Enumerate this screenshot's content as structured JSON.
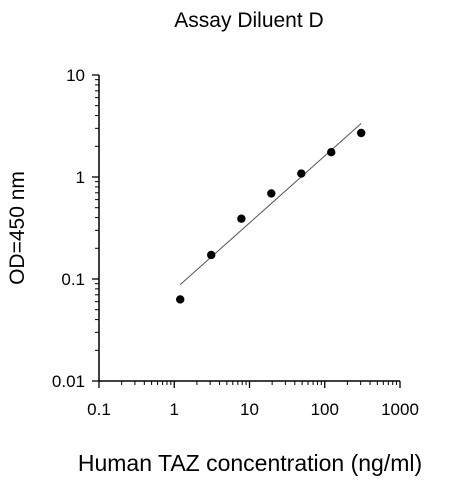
{
  "chart_data": {
    "type": "scatter",
    "title": "Assay Diluent D",
    "xlabel": "Human TAZ concentration (ng/ml)",
    "ylabel": "OD=450 nm",
    "x_scale": "log",
    "y_scale": "log",
    "xlim": [
      0.1,
      1000
    ],
    "ylim": [
      0.01,
      10
    ],
    "xticks": [
      "0.1",
      "1",
      "10",
      "100",
      "1000"
    ],
    "yticks": [
      "0.01",
      "0.1",
      "1",
      "10"
    ],
    "grid": false,
    "legend": "none",
    "series": [
      {
        "x": [
          1.2,
          3.1,
          7.8,
          19.5,
          48.8,
          122,
          305
        ],
        "y": [
          0.063,
          0.172,
          0.39,
          0.69,
          1.08,
          1.75,
          2.7
        ]
      }
    ],
    "fit_line": {
      "x": [
        1.2,
        305
      ],
      "y": [
        0.088,
        3.35
      ]
    },
    "colors": {
      "points": "#000000",
      "fit_line": "#555555",
      "axes": "#000000"
    }
  }
}
